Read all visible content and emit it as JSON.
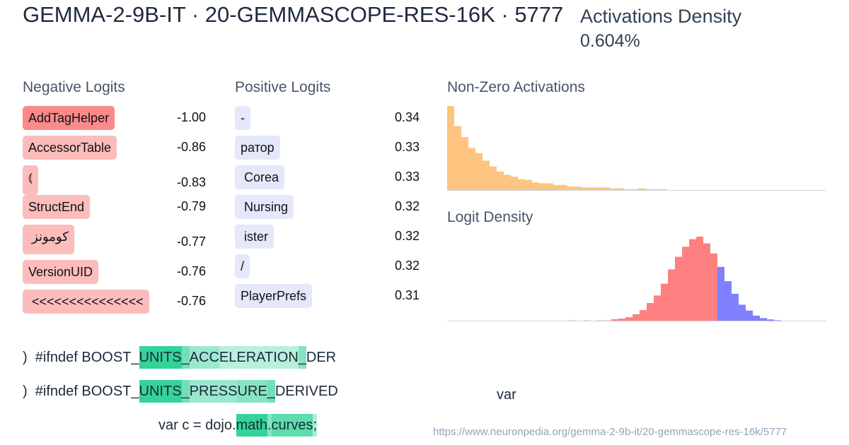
{
  "header": {
    "title": "GEMMA-2-9B-IT · 20-GEMMASCOPE-RES-16K · 5777",
    "density_label": "Activations Density",
    "density_value": "0.604%"
  },
  "negative_logits": {
    "label": "Negative Logits",
    "items": [
      {
        "token": "AddTagHelper",
        "value": "-1.00",
        "color": "#fb8a8a"
      },
      {
        "token": "AccessorTable",
        "value": "-0.86",
        "color": "#fcbcbc"
      },
      {
        "token": "⦅",
        "value": "-0.83",
        "color": "#fcbcbc"
      },
      {
        "token": "StructEnd",
        "value": "-0.79",
        "color": "#fcbcbc"
      },
      {
        "token": " كومونز",
        "value": "-0.77",
        "color": "#fcbcbc"
      },
      {
        "token": "VersionUID",
        "value": "-0.76",
        "color": "#fcbcbc"
      },
      {
        "token": " <<<<<<<<<<<<<<<",
        "value": "-0.76",
        "color": "#fcbcbc"
      }
    ]
  },
  "positive_logits": {
    "label": "Positive Logits",
    "items": [
      {
        "token": "-",
        "value": "0.34"
      },
      {
        "token": "ратор",
        "value": "0.33"
      },
      {
        "token": " Corea",
        "value": "0.33"
      },
      {
        "token": " Nursing",
        "value": "0.32"
      },
      {
        "token": " ister",
        "value": "0.32"
      },
      {
        "token": "/",
        "value": "0.32"
      },
      {
        "token": "PlayerPrefs",
        "value": "0.31"
      }
    ],
    "color": "#e5e7fb"
  },
  "activations_chart": {
    "label": "Non-Zero Activations",
    "color": "#fdc57f",
    "chart_data": {
      "type": "bar",
      "values": [
        100,
        76,
        63,
        50,
        44,
        35,
        28,
        22,
        18,
        16,
        13,
        12,
        9,
        8,
        8,
        6,
        6,
        4,
        4,
        3,
        3,
        3,
        3,
        2,
        2,
        1,
        1,
        2,
        1,
        1,
        1
      ]
    }
  },
  "logit_chart": {
    "label": "Logit Density",
    "neg_color": "#ff8080",
    "pos_color": "#8080ff",
    "chart_data": {
      "type": "bar",
      "negative_values": [
        0.3,
        0,
        0.3,
        0,
        0.3,
        0.3,
        1.7,
        2.5,
        4.2,
        7.6,
        12.6,
        21,
        30,
        44,
        61,
        76,
        88,
        97,
        100,
        92,
        80
      ],
      "positive_values": [
        64,
        47,
        32,
        19,
        12,
        6,
        3,
        1.5,
        0.5
      ]
    }
  },
  "examples": [
    {
      "tokens": [
        {
          "t": ")  #ifndef ",
          "a": 0
        },
        {
          "t": "BOOST_",
          "a": 0
        },
        {
          "t": "UNITS",
          "a": 1
        },
        {
          "t": "_",
          "a": 0.7
        },
        {
          "t": "ACC",
          "a": 0.5
        },
        {
          "t": "ELERATION",
          "a": 0.35
        },
        {
          "t": "_",
          "a": 0.6
        },
        {
          "t": "DER",
          "a": 0
        }
      ]
    },
    {
      "tokens": [
        {
          "t": ")  #ifndef ",
          "a": 0
        },
        {
          "t": "BOOST_",
          "a": 0
        },
        {
          "t": "UNITS",
          "a": 1
        },
        {
          "t": "_",
          "a": 0.7
        },
        {
          "t": "PRESS",
          "a": 0.5
        },
        {
          "t": "URE",
          "a": 0.6
        },
        {
          "t": "_",
          "a": 0.7
        },
        {
          "t": "DERIVED",
          "a": 0
        }
      ]
    },
    {
      "tokens": [
        {
          "t": "var c = dojo",
          "a": 0
        },
        {
          "t": ".",
          "a": 0
        },
        {
          "t": "math",
          "a": 1
        },
        {
          "t": ".",
          "a": 0.6
        },
        {
          "t": "curves",
          "a": 0.8
        },
        {
          "t": ";",
          "a": 0.4
        }
      ]
    }
  ],
  "trailing_token": "var",
  "url": "https://www.neuronpedia.org/gemma-2-9b-it/20-gemmascope-res-16k/5777"
}
